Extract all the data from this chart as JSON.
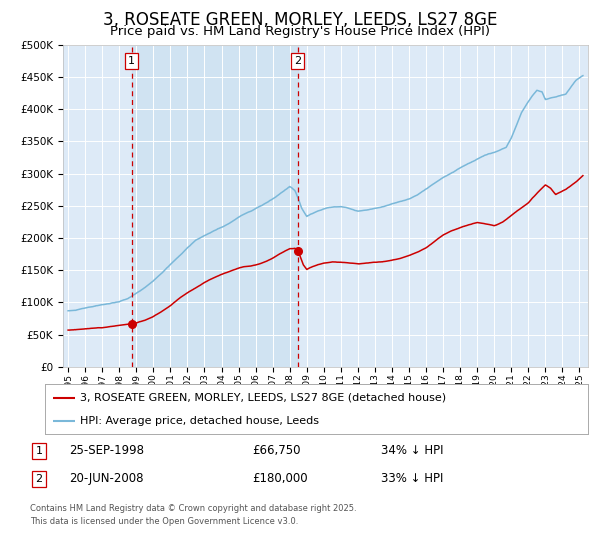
{
  "title": "3, ROSEATE GREEN, MORLEY, LEEDS, LS27 8GE",
  "subtitle": "Price paid vs. HM Land Registry's House Price Index (HPI)",
  "title_fontsize": 12,
  "subtitle_fontsize": 9.5,
  "background_color": "#ffffff",
  "plot_bg_color": "#ddeaf7",
  "grid_color": "#ffffff",
  "hpi_color": "#7ab8d9",
  "price_color": "#cc0000",
  "vline_color": "#cc0000",
  "span_color": "#c8dff0",
  "sale1_x": 1998.73,
  "sale1_y": 66750,
  "sale2_x": 2008.47,
  "sale2_y": 180000,
  "ylim": [
    0,
    500000
  ],
  "xlim": [
    1994.7,
    2025.5
  ],
  "yticks": [
    0,
    50000,
    100000,
    150000,
    200000,
    250000,
    300000,
    350000,
    400000,
    450000,
    500000
  ],
  "xtick_years": [
    1995,
    1996,
    1997,
    1998,
    1999,
    2000,
    2001,
    2002,
    2003,
    2004,
    2005,
    2006,
    2007,
    2008,
    2009,
    2010,
    2011,
    2012,
    2013,
    2014,
    2015,
    2016,
    2017,
    2018,
    2019,
    2020,
    2021,
    2022,
    2023,
    2024,
    2025
  ],
  "legend_label_price": "3, ROSEATE GREEN, MORLEY, LEEDS, LS27 8GE (detached house)",
  "legend_label_hpi": "HPI: Average price, detached house, Leeds",
  "annotation1_date": "25-SEP-1998",
  "annotation1_price": "£66,750",
  "annotation1_hpi": "34% ↓ HPI",
  "annotation2_date": "20-JUN-2008",
  "annotation2_price": "£180,000",
  "annotation2_hpi": "33% ↓ HPI",
  "footer": "Contains HM Land Registry data © Crown copyright and database right 2025.\nThis data is licensed under the Open Government Licence v3.0."
}
